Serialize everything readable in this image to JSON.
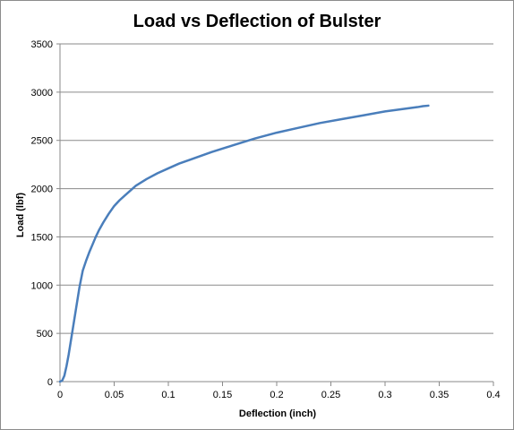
{
  "chart_data": {
    "type": "line",
    "title": "Load vs Deflection of Bulster",
    "xlabel": "Deflection (inch)",
    "ylabel": "Load (lbf)",
    "xlim": [
      0,
      0.4
    ],
    "ylim": [
      0,
      3500
    ],
    "x_ticks": [
      0,
      0.05,
      0.1,
      0.15,
      0.2,
      0.25,
      0.3,
      0.35,
      0.4
    ],
    "x_tick_labels": [
      "0",
      "0.05",
      "0.1",
      "0.15",
      "0.2",
      "0.25",
      "0.3",
      "0.35",
      "0.4"
    ],
    "y_ticks": [
      0,
      500,
      1000,
      1500,
      2000,
      2500,
      3000,
      3500
    ],
    "y_tick_labels": [
      "0",
      "500",
      "1000",
      "1500",
      "2000",
      "2500",
      "3000",
      "3500"
    ],
    "grid": "horizontal",
    "legend": "none",
    "series": [
      {
        "color": "#4a7ebb",
        "x": [
          0.0,
          0.002,
          0.004,
          0.006,
          0.008,
          0.01,
          0.012,
          0.015,
          0.018,
          0.021,
          0.024,
          0.027,
          0.03,
          0.033,
          0.036,
          0.04,
          0.045,
          0.05,
          0.055,
          0.06,
          0.07,
          0.08,
          0.09,
          0.1,
          0.11,
          0.12,
          0.14,
          0.16,
          0.18,
          0.2,
          0.22,
          0.24,
          0.26,
          0.28,
          0.3,
          0.32,
          0.33,
          0.335,
          0.34
        ],
        "y": [
          0,
          10,
          60,
          160,
          280,
          420,
          560,
          770,
          980,
          1150,
          1250,
          1340,
          1420,
          1500,
          1570,
          1650,
          1740,
          1820,
          1880,
          1930,
          2030,
          2100,
          2160,
          2210,
          2260,
          2300,
          2380,
          2450,
          2520,
          2580,
          2630,
          2680,
          2720,
          2760,
          2800,
          2830,
          2845,
          2855,
          2860
        ]
      }
    ]
  }
}
